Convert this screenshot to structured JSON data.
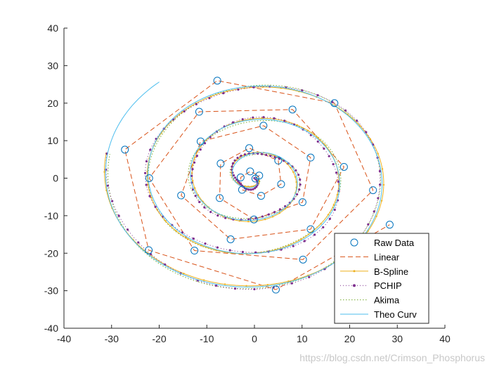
{
  "chart_data": {
    "type": "line",
    "xlim": [
      -40,
      40
    ],
    "ylim": [
      -40,
      40
    ],
    "x_ticks": [
      -40,
      -30,
      -20,
      -10,
      0,
      10,
      20,
      30,
      40
    ],
    "y_ticks": [
      -40,
      -30,
      -20,
      -10,
      0,
      10,
      20,
      30,
      40
    ],
    "x_tick_labels": [
      "-40",
      "-30",
      "-20",
      "-10",
      "0",
      "10",
      "20",
      "30",
      "40"
    ],
    "y_tick_labels": [
      "-40",
      "-30",
      "-20",
      "-10",
      "0",
      "10",
      "20",
      "30",
      "40"
    ],
    "grid": false,
    "legend_position": "bottom-right",
    "raw_data": {
      "x": [
        0.0,
        1.0,
        -0.9,
        -2.3,
        -2.9,
        1.4,
        5.5,
        4.9,
        0.9,
        -3.9,
        -4.2,
        0.0,
        7.1,
        11.6,
        11.9,
        10.2,
        5.4,
        0.0,
        -5.1,
        -9.4,
        -13.1,
        -15.8,
        -12.6,
        -10.2,
        -8.2,
        1.8,
        11.3,
        17.3,
        18.8,
        14.8,
        10.7,
        0.0,
        -11.9,
        -15.8,
        -22.0,
        -27.2,
        -26.9,
        -11.6,
        -8.2,
        1.9,
        8.2,
        16.8,
        24.6,
        23.2,
        21.6,
        11.8,
        4.5,
        -7.5,
        -20.8,
        -30.4,
        -31.0,
        -22.5,
        -13.5,
        3.2,
        20.5,
        28.6,
        31.5,
        29.9
      ],
      "y": [
        0.0,
        0.7,
        1.8,
        0.4,
        -3.0,
        -4.6,
        -1.5,
        4.7,
        8.0,
        7.7,
        3.9,
        -11.0,
        -8.6,
        -6.5,
        5.4,
        3.7,
        2.8,
        -6.1,
        -8.7,
        -12.0,
        -7.5,
        -4.6,
        -7.1,
        9.8,
        13.5,
        14.0,
        12.2,
        4.0,
        3.0,
        -13.5,
        -11.1,
        -21.7,
        -19.6,
        -16.4,
        -19.3,
        7.6,
        -0.2,
        17.7,
        17.5,
        19.8,
        18.3,
        14.8,
        2.5,
        -14.1,
        -22.6,
        -21.7,
        -29.6,
        -28.4,
        -29.0,
        -19.3,
        0.0,
        15.2,
        23.4,
        26.3,
        22.3,
        9.2,
        -1.8,
        -12.5
      ],
      "plot_x": [
        0,
        1.0,
        -0.9,
        -2.9,
        1.4,
        5.5,
        4.9,
        0.9,
        -3.9,
        -4.2,
        -1.0,
        7.1,
        11.6,
        11.9,
        10.2,
        5.4,
        -5.1,
        -9.4,
        -13.1,
        -15.8,
        -12.6,
        -10.2,
        -8.2,
        1.8,
        11.3,
        17.3,
        18.8,
        14.8,
        10.7,
        0.0,
        -11.9,
        -22.0,
        -27.2,
        -26.9,
        -11.6,
        -8.2,
        8.2,
        16.8,
        24.6,
        23.2,
        21.6,
        11.8,
        4.5,
        -7.5,
        -20.8,
        -22.0,
        28.4
      ],
      "note": "",
      "x_markers": [
        0.2,
        1.0,
        -0.9,
        -2.9,
        -2.6,
        1.4,
        5.6,
        5.1,
        -1.0,
        -9.0,
        -8.9,
        -15.4,
        -12.6,
        -11.3,
        -7.9,
        1.9,
        8.0,
        16.8,
        24.8,
        24.9,
        18.7,
        11.8,
        10.1,
        0.0,
        -5.0,
        -11.9,
        -22.0,
        -27.2,
        -22.2,
        -15.6,
        4.5,
        28.4
      ],
      "y_markers": [
        -0.2,
        0.6,
        1.8,
        0.4,
        -3.1,
        -4.7,
        -1.6,
        4.7,
        8.0,
        3.9,
        -5.4,
        -4.5,
        -19.3,
        9.8,
        26.0,
        14.0,
        18.3,
        20.0,
        -3.2,
        3.0,
        3.0,
        5.5,
        -6.3,
        -11.0,
        -16.3,
        -17.6,
        0.0,
        7.6,
        -19.2,
        -4.6,
        -29.7,
        -12.4
      ],
      "points_x": [
        -0.1,
        1.1,
        -0.9,
        -3.1,
        -2.7,
        1.5,
        5.7,
        4.9,
        -0.9,
        -1.0,
        -3.1,
        -8.9,
        -8.9,
        -15.4,
        -10.5,
        1.9,
        8.0,
        16.8,
        24.9,
        18.8,
        11.8,
        10.1,
        -5.0,
        -11.9,
        -22.1,
        -27.2,
        -22.2,
        -15.4,
        -7.8,
        4.5,
        28.4,
        0.3,
        8.0
      ],
      "points_y": [
        0.0,
        0.6,
        1.8,
        -0.7,
        -3.2,
        -4.6,
        -1.6,
        4.7,
        8.1,
        7.8,
        -0.3,
        -5.3,
        3.8,
        -4.6,
        9.8,
        14.0,
        18.3,
        20.0,
        -3.2,
        3.0,
        5.5,
        -6.3,
        -16.3,
        -19.3,
        0.0,
        7.6,
        -19.2,
        -19.4,
        26.0,
        -29.7,
        -12.4,
        -11.0,
        8.1
      ]
    },
    "markers": [
      [
        0.2,
        -0.1
      ],
      [
        1.0,
        0.7
      ],
      [
        -0.9,
        1.8
      ],
      [
        -2.9,
        0.2
      ],
      [
        -2.6,
        -3.1
      ],
      [
        1.4,
        -4.7
      ],
      [
        5.6,
        -1.6
      ],
      [
        5.0,
        4.7
      ],
      [
        -1.1,
        8.0
      ],
      [
        -7.1,
        3.9
      ],
      [
        -7.3,
        -5.3
      ],
      [
        -0.1,
        -11.0
      ],
      [
        10.1,
        -6.4
      ],
      [
        11.8,
        5.5
      ],
      [
        1.9,
        14.0
      ],
      [
        -11.3,
        9.8
      ],
      [
        -15.4,
        -4.6
      ],
      [
        -5.0,
        -16.3
      ],
      [
        11.8,
        -13.6
      ],
      [
        18.8,
        3.0
      ],
      [
        8.0,
        18.3
      ],
      [
        -11.6,
        17.7
      ],
      [
        -22.1,
        0.0
      ],
      [
        -12.6,
        -19.3
      ],
      [
        10.2,
        -21.7
      ],
      [
        24.9,
        -3.2
      ],
      [
        16.8,
        20.0
      ],
      [
        -7.8,
        26.0
      ],
      [
        -27.2,
        7.6
      ],
      [
        -22.2,
        -19.2
      ],
      [
        4.5,
        -29.7
      ],
      [
        28.4,
        -12.4
      ]
    ],
    "series": [
      {
        "name": "Raw Data",
        "style": "markers-circle",
        "color": "#0072BD"
      },
      {
        "name": "Linear",
        "style": "dashed",
        "color": "#D95319"
      },
      {
        "name": "B-Spline",
        "style": "solid-dot",
        "color": "#EDB120"
      },
      {
        "name": "PCHIP",
        "style": "dotted-dot",
        "color": "#7E2F8E"
      },
      {
        "name": "Akima",
        "style": "dotted",
        "color": "#77AC30"
      },
      {
        "name": "Theo Curv",
        "style": "solid",
        "color": "#4DBEEE"
      }
    ],
    "spiral_model": {
      "radius_per_radian": 1.42,
      "theta_end": 22.2
    }
  },
  "watermark": "https://blog.csdn.net/Crimson_Phosphorus"
}
